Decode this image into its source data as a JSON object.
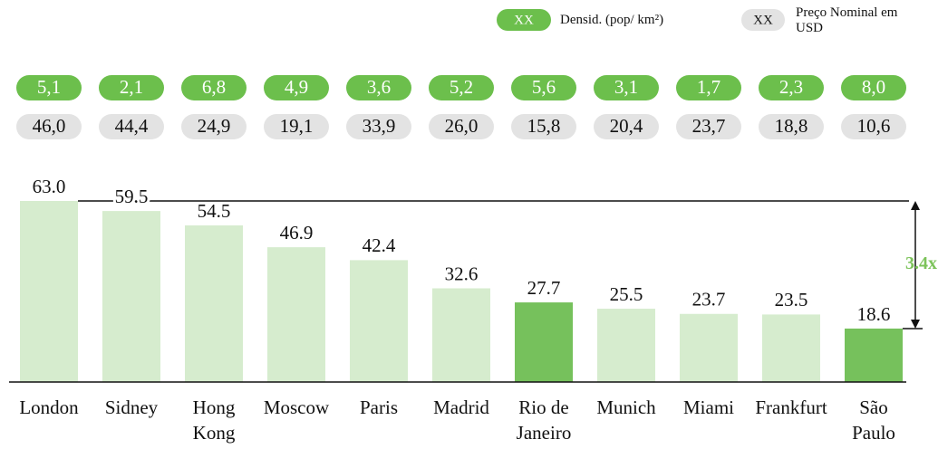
{
  "chart_data": {
    "type": "bar",
    "legend": [
      {
        "marker": "XX",
        "label": "Densid. (pop/ km²)",
        "color": "#6cbf4c"
      },
      {
        "marker": "XX",
        "label": "Preço Nominal em USD",
        "color": "#e3e3e3"
      }
    ],
    "categories": [
      "London",
      "Sidney",
      "Hong Kong",
      "Moscow",
      "Paris",
      "Madrid",
      "Rio de Janeiro",
      "Munich",
      "Miami",
      "Frankfurt",
      "São Paulo"
    ],
    "values": [
      63.0,
      59.5,
      54.5,
      46.9,
      42.4,
      32.6,
      27.7,
      25.5,
      23.7,
      23.5,
      18.6
    ],
    "value_labels": [
      "63.0",
      "59.5",
      "54.5",
      "46.9",
      "42.4",
      "32.6",
      "27.7",
      "25.5",
      "23.7",
      "23.5",
      "18.6"
    ],
    "colors": [
      "#d6ecce",
      "#d6ecce",
      "#d6ecce",
      "#d6ecce",
      "#d6ecce",
      "#d6ecce",
      "#76c15c",
      "#d6ecce",
      "#d6ecce",
      "#d6ecce",
      "#76c15c"
    ],
    "density": {
      "values": [
        5.1,
        2.1,
        6.8,
        4.9,
        3.6,
        5.2,
        5.6,
        3.1,
        1.7,
        2.3,
        8.0
      ],
      "value_labels": [
        "5,1",
        "2,1",
        "6,8",
        "4,9",
        "3,6",
        "5,2",
        "5,6",
        "3,1",
        "1,7",
        "2,3",
        "8,0"
      ]
    },
    "price": {
      "values": [
        46.0,
        44.4,
        24.9,
        19.1,
        33.9,
        26.0,
        15.8,
        20.4,
        23.7,
        18.8,
        10.6
      ],
      "value_labels": [
        "46,0",
        "44,4",
        "24,9",
        "19,1",
        "33,9",
        "26,0",
        "15,8",
        "20,4",
        "23,7",
        "18,8",
        "10,6"
      ]
    },
    "annotation": "3.4x",
    "annotation_color": "#7cc35a",
    "ylim": [
      0,
      63
    ]
  }
}
